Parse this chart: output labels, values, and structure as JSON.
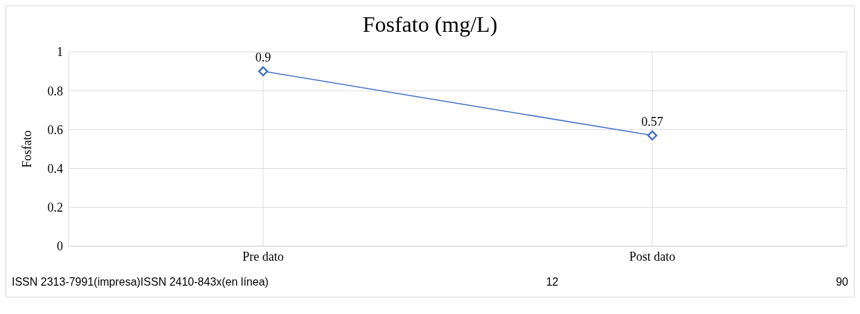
{
  "chart_data": {
    "type": "line",
    "title": "Fosfato (mg/L)",
    "ylabel": "Fosfato",
    "categories": [
      "Pre dato",
      "Post dato"
    ],
    "series": [
      {
        "color": "#4472c4",
        "values": [
          0.9,
          0.57
        ]
      }
    ],
    "ylim": [
      0,
      1
    ],
    "yticks": [
      0,
      0.2,
      0.4,
      0.6,
      0.8,
      1
    ],
    "grid": true,
    "marker": "diamond",
    "data_labels": true,
    "legend": false,
    "annotations": [
      "ISSN 2313-7991(impresa)ISSN 2410-843x(en línea)",
      "12",
      "90"
    ]
  }
}
